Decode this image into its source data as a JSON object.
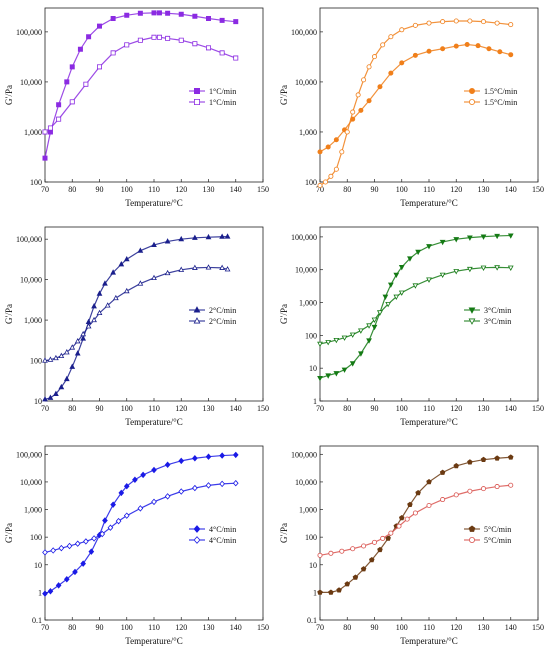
{
  "chart_data": [
    {
      "type": "scatter",
      "xlabel": "Temperature/°C",
      "ylabel": "G′/Pa",
      "xlim": [
        70,
        150
      ],
      "ylim": [
        100,
        300000
      ],
      "y_scale": "log",
      "x_ticks": [
        70,
        80,
        90,
        100,
        110,
        120,
        130,
        140,
        150
      ],
      "y_ticks": [
        100,
        1000,
        10000,
        100000
      ],
      "y_tick_labels": [
        "100",
        "1,000",
        "10,000",
        "100,000"
      ],
      "legend_position": "center-right",
      "series": [
        {
          "name": "1°C/min",
          "marker": "square-filled",
          "color": "#8B2BE2",
          "x": [
            70,
            72,
            75,
            78,
            80,
            83,
            86,
            90,
            95,
            100,
            105,
            110,
            112,
            115,
            120,
            125,
            130,
            135,
            140
          ],
          "y": [
            300,
            1000,
            3500,
            10000,
            20000,
            45000,
            80000,
            130000,
            185000,
            215000,
            235000,
            240000,
            240000,
            235000,
            225000,
            205000,
            185000,
            170000,
            160000
          ]
        },
        {
          "name": "1°C/min",
          "marker": "square-open",
          "color": "#8B2BE2",
          "x": [
            70,
            72,
            75,
            80,
            85,
            90,
            95,
            100,
            105,
            110,
            112,
            115,
            120,
            125,
            130,
            135,
            140
          ],
          "y": [
            1000,
            1200,
            1800,
            4000,
            9000,
            20000,
            38000,
            55000,
            68000,
            78000,
            78000,
            74000,
            68000,
            58000,
            48000,
            38000,
            30000
          ]
        }
      ]
    },
    {
      "type": "scatter",
      "xlabel": "Temperature/°C",
      "ylabel": "G′/Pa",
      "xlim": [
        70,
        150
      ],
      "ylim": [
        100,
        300000
      ],
      "y_scale": "log",
      "x_ticks": [
        70,
        80,
        90,
        100,
        110,
        120,
        130,
        140,
        150
      ],
      "y_ticks": [
        100,
        1000,
        10000,
        100000
      ],
      "y_tick_labels": [
        "100",
        "1,000",
        "10,000",
        "100,000"
      ],
      "legend_position": "center-right",
      "series": [
        {
          "name": "1.5°C/min",
          "marker": "circle-filled",
          "color": "#F07F1A",
          "x": [
            70,
            73,
            76,
            79,
            82,
            85,
            88,
            92,
            96,
            100,
            105,
            110,
            115,
            120,
            124,
            128,
            132,
            136,
            140
          ],
          "y": [
            400,
            500,
            700,
            1100,
            1800,
            2700,
            4200,
            8000,
            15000,
            24000,
            34000,
            41000,
            46000,
            52000,
            56000,
            53000,
            46000,
            40000,
            35000
          ]
        },
        {
          "name": "1.5°C/min",
          "marker": "circle-open",
          "color": "#F07F1A",
          "x": [
            70,
            72,
            74,
            76,
            78,
            80,
            82,
            84,
            86,
            88,
            90,
            93,
            96,
            100,
            105,
            110,
            115,
            120,
            125,
            130,
            135,
            140
          ],
          "y": [
            85,
            100,
            130,
            180,
            400,
            1000,
            2500,
            5500,
            11000,
            20000,
            32000,
            55000,
            80000,
            110000,
            135000,
            150000,
            160000,
            165000,
            165000,
            160000,
            150000,
            140000
          ]
        }
      ]
    },
    {
      "type": "scatter",
      "xlabel": "Temperature/°C",
      "ylabel": "G′/Pa",
      "xlim": [
        70,
        150
      ],
      "ylim": [
        10,
        200000
      ],
      "y_scale": "log",
      "x_ticks": [
        70,
        80,
        90,
        100,
        110,
        120,
        130,
        140,
        150
      ],
      "y_ticks": [
        10,
        100,
        1000,
        10000,
        100000
      ],
      "y_tick_labels": [
        "10",
        "100",
        "1,000",
        "10,000",
        "100,000"
      ],
      "legend_position": "center-right",
      "series": [
        {
          "name": "2°C/min",
          "marker": "triangle-up-filled",
          "color": "#1A1F8C",
          "x": [
            70,
            72,
            74,
            76,
            78,
            80,
            82,
            84,
            86,
            88,
            90,
            92,
            95,
            98,
            100,
            105,
            110,
            115,
            120,
            125,
            130,
            135,
            137
          ],
          "y": [
            11,
            12,
            15,
            22,
            35,
            70,
            150,
            350,
            900,
            2200,
            4500,
            8000,
            15000,
            24000,
            32000,
            52000,
            72000,
            88000,
            100000,
            108000,
            112000,
            115000,
            116000
          ]
        },
        {
          "name": "2°C/min",
          "marker": "triangle-up-open",
          "color": "#1A1F8C",
          "x": [
            70,
            72,
            74,
            76,
            78,
            80,
            82,
            84,
            86,
            88,
            90,
            93,
            96,
            100,
            105,
            110,
            115,
            120,
            125,
            130,
            135,
            137
          ],
          "y": [
            100,
            105,
            115,
            130,
            160,
            210,
            300,
            450,
            700,
            1000,
            1500,
            2300,
            3500,
            5200,
            8000,
            11000,
            14500,
            17500,
            19500,
            20000,
            19500,
            18000
          ]
        }
      ]
    },
    {
      "type": "scatter",
      "xlabel": "Temperature/°C",
      "ylabel": "G′/Pa",
      "xlim": [
        70,
        150
      ],
      "ylim": [
        1,
        200000
      ],
      "y_scale": "log",
      "x_ticks": [
        70,
        80,
        90,
        100,
        110,
        120,
        130,
        140,
        150
      ],
      "y_ticks": [
        1,
        10,
        100,
        1000,
        10000,
        100000
      ],
      "y_tick_labels": [
        "1",
        "10",
        "100",
        "1,000",
        "10,000",
        "100,000"
      ],
      "legend_position": "center-right",
      "series": [
        {
          "name": "3°C/min",
          "marker": "triangle-down-filled",
          "color": "#147A14",
          "x": [
            70,
            73,
            76,
            79,
            82,
            85,
            88,
            90,
            92,
            94,
            96,
            98,
            100,
            103,
            106,
            110,
            115,
            120,
            125,
            130,
            135,
            140
          ],
          "y": [
            5,
            6,
            7,
            9,
            14,
            28,
            70,
            180,
            500,
            1500,
            3500,
            7000,
            12000,
            22000,
            35000,
            52000,
            70000,
            85000,
            95000,
            102000,
            107000,
            110000
          ]
        },
        {
          "name": "3°C/min",
          "marker": "triangle-down-open",
          "color": "#147A14",
          "x": [
            70,
            73,
            76,
            79,
            82,
            85,
            88,
            90,
            92,
            95,
            98,
            100,
            105,
            110,
            115,
            120,
            125,
            130,
            135,
            140
          ],
          "y": [
            55,
            62,
            72,
            85,
            105,
            140,
            200,
            300,
            500,
            900,
            1500,
            2000,
            3300,
            5000,
            7000,
            9000,
            10500,
            11500,
            11800,
            11500
          ]
        }
      ]
    },
    {
      "type": "scatter",
      "xlabel": "Temperature/°C",
      "ylabel": "G′/Pa",
      "xlim": [
        70,
        150
      ],
      "ylim": [
        0.1,
        200000
      ],
      "y_scale": "log",
      "x_ticks": [
        70,
        80,
        90,
        100,
        110,
        120,
        130,
        140,
        150
      ],
      "y_ticks": [
        0.1,
        1,
        10,
        100,
        1000,
        10000,
        100000
      ],
      "y_tick_labels": [
        "0.1",
        "1",
        "10",
        "100",
        "1,000",
        "10,000",
        "100,000"
      ],
      "legend_position": "center-right",
      "series": [
        {
          "name": "4°C/min",
          "marker": "diamond-filled",
          "color": "#1A1AE6",
          "x": [
            70,
            72,
            75,
            78,
            81,
            84,
            87,
            90,
            92,
            95,
            98,
            100,
            103,
            106,
            110,
            115,
            120,
            125,
            130,
            135,
            140
          ],
          "y": [
            0.9,
            1.1,
            1.8,
            3,
            5.5,
            11,
            30,
            120,
            400,
            1500,
            4000,
            7000,
            12000,
            18000,
            27000,
            42000,
            58000,
            72000,
            82000,
            90000,
            95000
          ]
        },
        {
          "name": "4°C/min",
          "marker": "diamond-open",
          "color": "#1A1AE6",
          "x": [
            70,
            73,
            76,
            79,
            82,
            85,
            88,
            91,
            94,
            97,
            100,
            105,
            110,
            115,
            120,
            125,
            130,
            135,
            140
          ],
          "y": [
            28,
            33,
            40,
            48,
            58,
            70,
            90,
            130,
            220,
            380,
            600,
            1100,
            1900,
            3000,
            4500,
            6000,
            7500,
            8500,
            9000
          ]
        }
      ]
    },
    {
      "type": "scatter",
      "xlabel": "Temperature/°C",
      "ylabel": "G′/Pa",
      "xlim": [
        70,
        150
      ],
      "ylim": [
        0.1,
        200000
      ],
      "y_scale": "log",
      "x_ticks": [
        70,
        80,
        90,
        100,
        110,
        120,
        130,
        140,
        150
      ],
      "y_ticks": [
        0.1,
        1,
        10,
        100,
        1000,
        10000,
        100000
      ],
      "y_tick_labels": [
        "0.1",
        "1",
        "10",
        "100",
        "1,000",
        "10,000",
        "100,000"
      ],
      "legend_position": "center-right",
      "series": [
        {
          "name": "5°C/min",
          "marker": "pentagon-filled",
          "color": "#6B3A12",
          "x": [
            70,
            74,
            77,
            80,
            83,
            86,
            89,
            92,
            95,
            98,
            100,
            103,
            106,
            110,
            115,
            120,
            125,
            130,
            135,
            140
          ],
          "y": [
            1,
            1,
            1.2,
            2,
            3.5,
            7,
            15,
            35,
            90,
            250,
            500,
            1500,
            4000,
            10000,
            22000,
            38000,
            52000,
            64000,
            72000,
            78000
          ]
        },
        {
          "name": "5°C/min",
          "marker": "circle-open",
          "color": "#D9534F",
          "x": [
            70,
            74,
            78,
            82,
            86,
            90,
            93,
            96,
            99,
            102,
            105,
            110,
            115,
            120,
            125,
            130,
            135,
            140
          ],
          "y": [
            22,
            26,
            31,
            38,
            48,
            65,
            90,
            140,
            250,
            450,
            750,
            1400,
            2300,
            3400,
            4600,
            5700,
            6800,
            7600
          ]
        }
      ]
    }
  ]
}
